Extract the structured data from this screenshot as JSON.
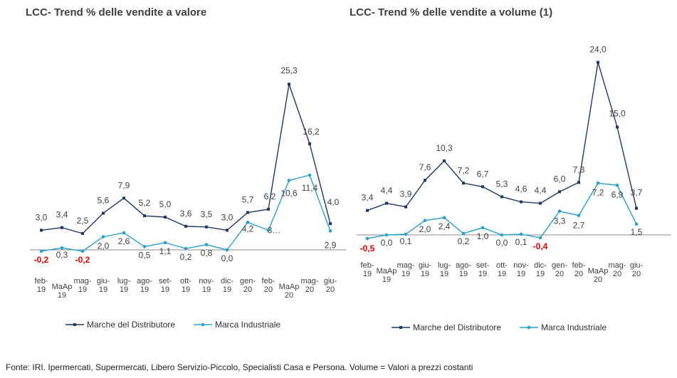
{
  "chart_data": [
    {
      "type": "line",
      "title": "LCC- Trend % delle vendite a valore",
      "categories": [
        [
          "feb-",
          "19"
        ],
        [
          "MaAp",
          "19"
        ],
        [
          "mag-",
          "19"
        ],
        [
          "giu-",
          "19"
        ],
        [
          "lug-",
          "19"
        ],
        [
          "ago-",
          "19"
        ],
        [
          "set-",
          "19"
        ],
        [
          "ott-",
          "19"
        ],
        [
          "nov-",
          "19"
        ],
        [
          "dic-",
          "19"
        ],
        [
          "gen-",
          "20"
        ],
        [
          "feb-",
          "20"
        ],
        [
          "MaAp",
          "20"
        ],
        [
          "mag-",
          "20"
        ],
        [
          "giu-",
          "20"
        ]
      ],
      "series": [
        {
          "name": "Marche del Distributore",
          "color": "#1f3864",
          "values": [
            3.0,
            3.4,
            2.5,
            5.6,
            7.9,
            5.2,
            5.0,
            3.6,
            3.5,
            3.0,
            5.7,
            6.2,
            25.3,
            16.2,
            4.0
          ],
          "labels": [
            "3,0",
            "3,4",
            "2,5",
            "5,6",
            "7,9",
            "5,2",
            "5,0",
            "3,6",
            "3,5",
            "3,0",
            "5,7",
            "6,2",
            "25,3",
            "16,2",
            "4,0"
          ]
        },
        {
          "name": "Marca Industriale",
          "color": "#2aa0c8",
          "values": [
            -0.2,
            0.3,
            -0.2,
            2.0,
            2.6,
            0.5,
            1.1,
            0.2,
            0.8,
            0.0,
            4.2,
            3.0,
            10.6,
            11.4,
            2.9
          ],
          "labels": [
            "-0,2",
            "0,3",
            "-0,2",
            "2,0",
            "2,6",
            "0,5",
            "1,1",
            "0,2",
            "0,8",
            "0,0",
            "4,2",
            "3…",
            "10,6",
            "11,4",
            "2,9"
          ]
        }
      ]
    },
    {
      "type": "line",
      "title": "LCC- Trend % delle vendite a volume (1)",
      "categories": [
        [
          "feb-",
          "19"
        ],
        [
          "MaAp",
          "19"
        ],
        [
          "mag-",
          "19"
        ],
        [
          "giu-",
          "19"
        ],
        [
          "lug-",
          "19"
        ],
        [
          "ago-",
          "19"
        ],
        [
          "set-",
          "19"
        ],
        [
          "ott-",
          "19"
        ],
        [
          "nov-",
          "19"
        ],
        [
          "dic-",
          "19"
        ],
        [
          "gen-",
          "20"
        ],
        [
          "feb-",
          "20"
        ],
        [
          "MaAp",
          "20"
        ],
        [
          "mag-",
          "20"
        ],
        [
          "giu-",
          "20"
        ]
      ],
      "series": [
        {
          "name": "Marche del Distributore",
          "color": "#1f3864",
          "values": [
            3.4,
            4.4,
            3.9,
            7.6,
            10.3,
            7.2,
            6.7,
            5.3,
            4.6,
            4.4,
            6.0,
            7.3,
            24.0,
            15.0,
            3.7
          ],
          "labels": [
            "3,4",
            "4,4",
            "3,9",
            "7,6",
            "10,3",
            "7,2",
            "6,7",
            "5,3",
            "4,6",
            "4,4",
            "6,0",
            "7,3",
            "24,0",
            "15,0",
            "3,7"
          ]
        },
        {
          "name": "Marca Industriale",
          "color": "#2aa0c8",
          "values": [
            -0.5,
            0.0,
            0.1,
            2.0,
            2.4,
            0.2,
            1.0,
            0.0,
            0.1,
            -0.4,
            3.3,
            2.7,
            7.2,
            6.9,
            1.5
          ],
          "labels": [
            "-0,5",
            "0,0",
            "0,1",
            "2,0",
            "2,4",
            "0,2",
            "1,0",
            "0,0",
            "0,1",
            "-0,4",
            "3,3",
            "2,7",
            "7,2",
            "6,9",
            "1,5"
          ]
        }
      ]
    }
  ],
  "colors": {
    "negative_label": "#e00000",
    "label": "#404040",
    "axis": "#888888"
  },
  "footer": {
    "source": "Fonte: IRI. Ipermercati, Supermercati, Libero Servizio-Piccolo, Specialisti Casa e Persona.  Volume = Valori a prezzi  costanti"
  }
}
